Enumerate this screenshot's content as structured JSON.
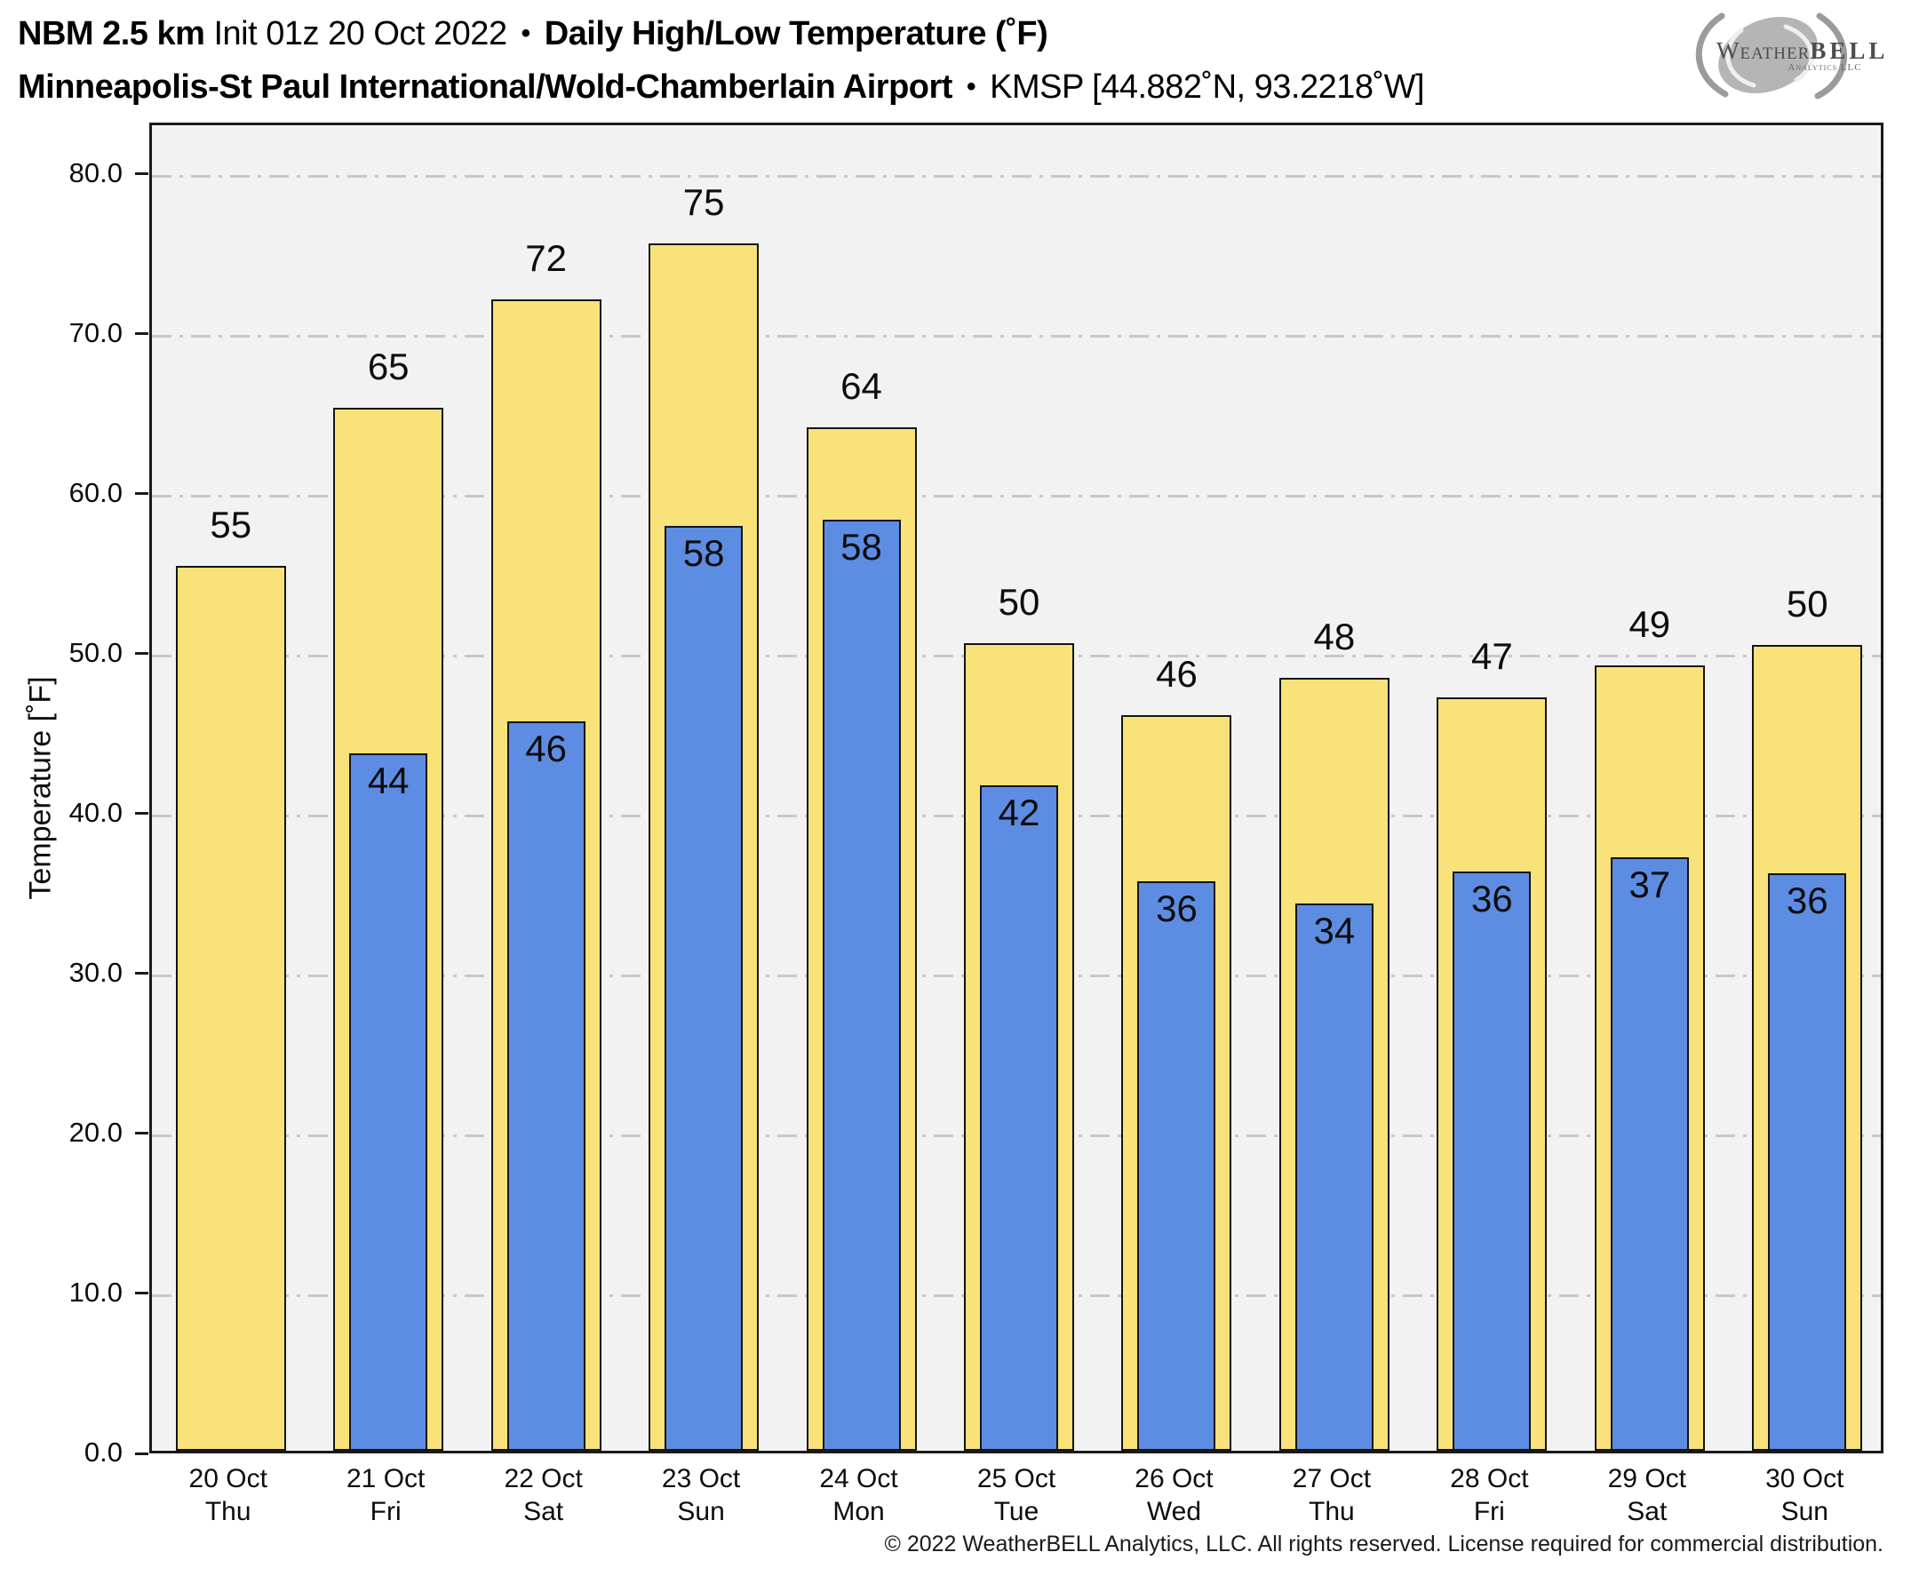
{
  "header": {
    "line1": {
      "model": "NBM 2.5 km",
      "init": "Init 01z 20 Oct 2022",
      "sep": "•",
      "product": "Daily High/Low Temperature (˚F)"
    },
    "line2": {
      "station": "Minneapolis-St Paul International/Wold-Chamberlain Airport",
      "sep": "•",
      "station_id": "KMSP [44.882˚N, 93.2218˚W]"
    },
    "logo": {
      "part1": "Weather",
      "part2": "BELL",
      "sub": "Analytics LLC"
    }
  },
  "chart_data": {
    "type": "bar",
    "title": "Daily High/Low Temperature (˚F)",
    "ylabel": "Temperature [˚F]",
    "ylim": [
      0,
      83.2
    ],
    "yticks": [
      0,
      10,
      20,
      30,
      40,
      50,
      60,
      70,
      80
    ],
    "ytick_labels": [
      "0.0",
      "10.0",
      "20.0",
      "30.0",
      "40.0",
      "50.0",
      "60.0",
      "70.0",
      "80.0"
    ],
    "grid": {
      "horizontal": true,
      "style": "dash-dot",
      "color": "#c8c8c8"
    },
    "plot_bg": "#f2f2f2",
    "categories": [
      {
        "date": "20 Oct",
        "day": "Thu"
      },
      {
        "date": "21 Oct",
        "day": "Fri"
      },
      {
        "date": "22 Oct",
        "day": "Sat"
      },
      {
        "date": "23 Oct",
        "day": "Sun"
      },
      {
        "date": "24 Oct",
        "day": "Mon"
      },
      {
        "date": "25 Oct",
        "day": "Tue"
      },
      {
        "date": "26 Oct",
        "day": "Wed"
      },
      {
        "date": "27 Oct",
        "day": "Thu"
      },
      {
        "date": "28 Oct",
        "day": "Fri"
      },
      {
        "date": "29 Oct",
        "day": "Sat"
      },
      {
        "date": "30 Oct",
        "day": "Sun"
      }
    ],
    "series": [
      {
        "name": "High",
        "color": "#f9e27a",
        "labels": [
          55,
          65,
          72,
          75,
          64,
          50,
          46,
          48,
          47,
          49,
          50
        ],
        "bar_heights_f": [
          55.3,
          65.2,
          72.0,
          75.5,
          64.0,
          50.5,
          46.0,
          48.3,
          47.1,
          49.1,
          50.4
        ]
      },
      {
        "name": "Low",
        "color": "#5d8de2",
        "labels": [
          null,
          44,
          46,
          58,
          58,
          42,
          36,
          34,
          36,
          37,
          36
        ],
        "bar_heights_f": [
          null,
          43.6,
          45.6,
          57.8,
          58.2,
          41.6,
          35.6,
          34.2,
          36.2,
          37.1,
          36.1
        ]
      }
    ]
  },
  "footer": {
    "copyright": "© 2022 WeatherBELL Analytics, LLC. All rights reserved. License required for commercial distribution."
  }
}
